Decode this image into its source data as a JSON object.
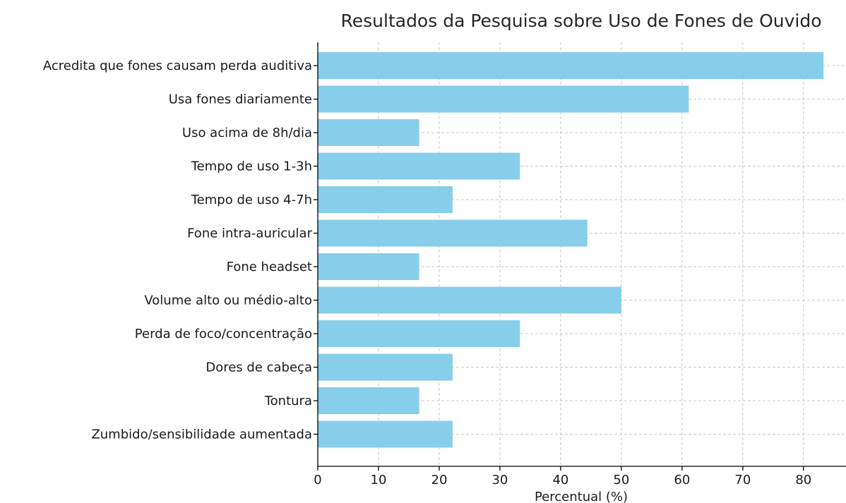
{
  "chart_data": {
    "type": "bar",
    "orientation": "horizontal",
    "title": "Resultados da Pesquisa sobre Uso de Fones de Ouvido",
    "xlabel": "Percentual (%)",
    "ylabel": "",
    "xlim": [
      0,
      87
    ],
    "xticks": [
      0,
      10,
      20,
      30,
      40,
      50,
      60,
      70,
      80
    ],
    "grid": true,
    "bar_color": "#87ceeb",
    "categories": [
      "Acredita que fones causam perda auditiva",
      "Usa fones diariamente",
      "Uso acima de 8h/dia",
      "Tempo de uso 1-3h",
      "Tempo de uso 4-7h",
      "Fone intra-auricular",
      "Fone headset",
      "Volume alto ou médio-alto",
      "Perda de foco/concentração",
      "Dores de cabeça",
      "Tontura",
      "Zumbido/sensibilidade aumentada"
    ],
    "values": [
      83.3,
      61.1,
      16.7,
      33.3,
      22.2,
      44.4,
      16.7,
      50.0,
      33.3,
      22.2,
      16.7,
      22.2
    ]
  }
}
